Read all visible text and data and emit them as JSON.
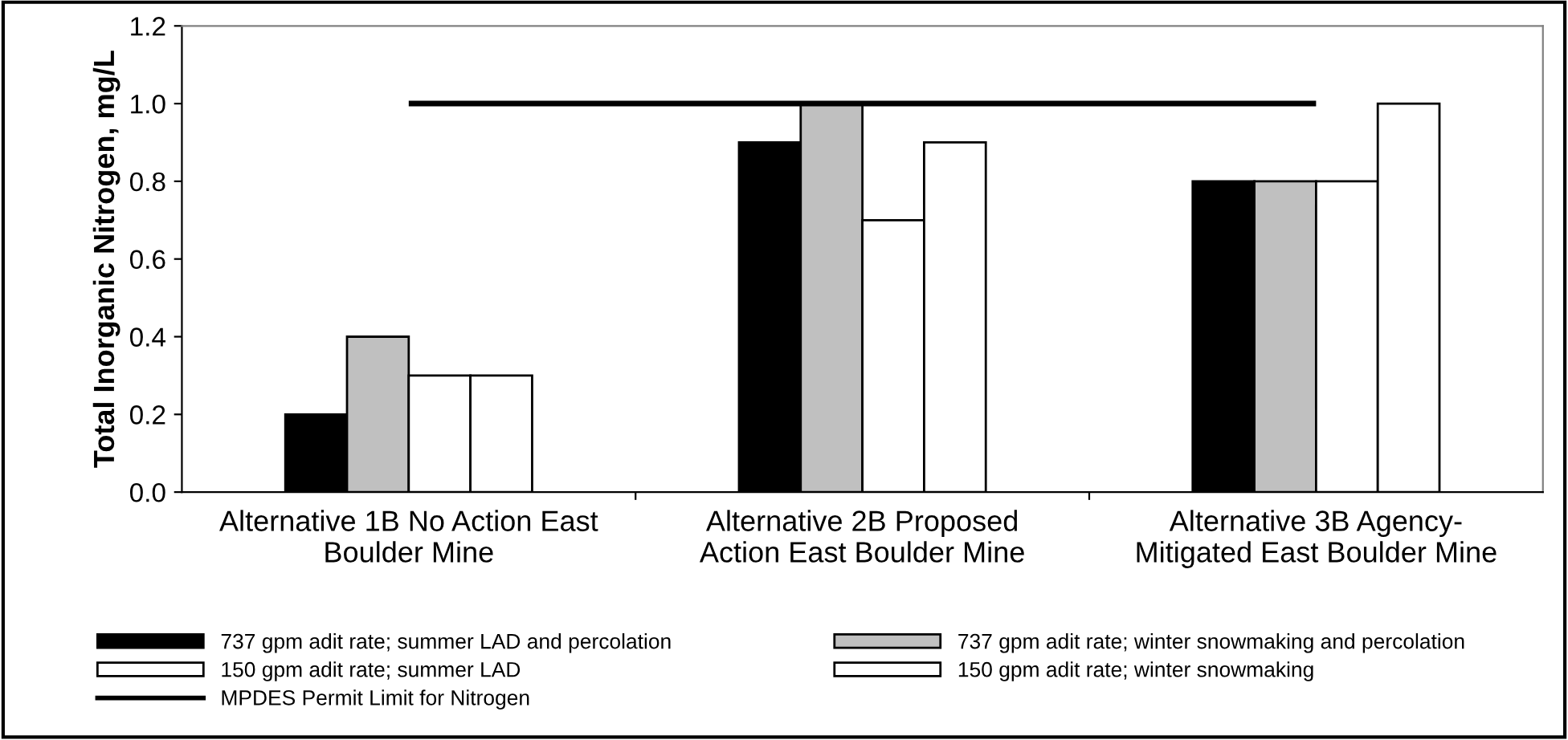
{
  "chart_data": {
    "type": "bar",
    "ylabel": "Total Inorganic Nitrogen, mg/L",
    "categories": [
      "Alternative 1B No Action East\nBoulder Mine",
      "Alternative 2B Proposed\nAction East Boulder Mine",
      "Alternative 3B Agency-\nMitigated East Boulder Mine"
    ],
    "series": [
      {
        "name": "737 gpm adit rate; summer LAD and percolation",
        "color": "#000000",
        "values": [
          0.2,
          0.9,
          0.8
        ]
      },
      {
        "name": "737 gpm adit rate; winter snowmaking and percolation",
        "color": "#c0c0c0",
        "values": [
          0.4,
          1.0,
          0.8
        ]
      },
      {
        "name": "150 gpm adit rate; summer LAD",
        "color": "#ffffff",
        "values": [
          0.3,
          0.7,
          0.8
        ]
      },
      {
        "name": "150 gpm adit rate; winter snowmaking",
        "color": "#ffffff",
        "values": [
          0.3,
          0.9,
          1.0
        ]
      }
    ],
    "ylim": [
      0,
      1.2
    ],
    "yticks": [
      {
        "value": 0,
        "label": "0.0"
      },
      {
        "value": 0.2,
        "label": "0.2"
      },
      {
        "value": 0.4,
        "label": "0.4"
      },
      {
        "value": 0.6,
        "label": "0.6"
      },
      {
        "value": 0.8,
        "label": "0.8"
      },
      {
        "value": 1.0,
        "label": "1.0"
      },
      {
        "value": 1.2,
        "label": "1.2"
      }
    ],
    "ref_lines": [
      {
        "axis": "y",
        "value": 1.0,
        "label": "MPDES Permit Limit for Nitrogen",
        "color": "#000000",
        "line_style": "solid"
      }
    ],
    "grid": false,
    "legend": "bottom"
  }
}
